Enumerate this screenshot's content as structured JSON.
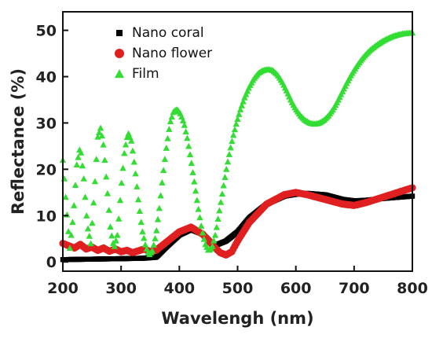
{
  "chart_data": {
    "type": "scatter",
    "xlabel": "Wavelengh (nm)",
    "ylabel": "Reflectance (%)",
    "xlim": [
      200,
      800
    ],
    "ylim": [
      -2,
      54
    ],
    "x_ticks": [
      200,
      300,
      400,
      500,
      600,
      700,
      800
    ],
    "y_ticks": [
      0,
      10,
      20,
      30,
      40,
      50
    ],
    "grid": false,
    "legend_position": "top-left",
    "series": [
      {
        "name": "Nano coral",
        "marker": "square",
        "color": "#000000",
        "points": [
          [
            200,
            0.5
          ],
          [
            250,
            0.6
          ],
          [
            300,
            0.7
          ],
          [
            340,
            0.8
          ],
          [
            360,
            1.0
          ],
          [
            380,
            3.5
          ],
          [
            400,
            5.8
          ],
          [
            420,
            7.0
          ],
          [
            440,
            6.0
          ],
          [
            460,
            3.5
          ],
          [
            480,
            4.5
          ],
          [
            500,
            6.5
          ],
          [
            520,
            9.5
          ],
          [
            550,
            12.5
          ],
          [
            580,
            14.2
          ],
          [
            600,
            14.6
          ],
          [
            620,
            14.8
          ],
          [
            650,
            14.5
          ],
          [
            680,
            13.5
          ],
          [
            700,
            13.2
          ],
          [
            720,
            13.3
          ],
          [
            750,
            13.7
          ],
          [
            780,
            14.0
          ],
          [
            800,
            14.2
          ]
        ]
      },
      {
        "name": "Nano flower",
        "marker": "circle",
        "color": "#e02020",
        "points": [
          [
            200,
            4.0
          ],
          [
            210,
            3.5
          ],
          [
            220,
            3.0
          ],
          [
            230,
            3.8
          ],
          [
            240,
            2.8
          ],
          [
            250,
            3.2
          ],
          [
            260,
            2.5
          ],
          [
            270,
            3.0
          ],
          [
            280,
            2.3
          ],
          [
            290,
            2.8
          ],
          [
            300,
            2.2
          ],
          [
            310,
            2.5
          ],
          [
            320,
            2.0
          ],
          [
            340,
            2.8
          ],
          [
            350,
            2.2
          ],
          [
            360,
            2.5
          ],
          [
            380,
            4.5
          ],
          [
            400,
            6.5
          ],
          [
            420,
            7.5
          ],
          [
            440,
            6.0
          ],
          [
            460,
            3.2
          ],
          [
            470,
            2.0
          ],
          [
            480,
            1.5
          ],
          [
            490,
            2.2
          ],
          [
            500,
            4.5
          ],
          [
            520,
            8.5
          ],
          [
            550,
            12.5
          ],
          [
            580,
            14.5
          ],
          [
            600,
            15.0
          ],
          [
            620,
            14.5
          ],
          [
            650,
            13.5
          ],
          [
            680,
            12.5
          ],
          [
            700,
            12.2
          ],
          [
            720,
            12.8
          ],
          [
            750,
            14.0
          ],
          [
            780,
            15.2
          ],
          [
            800,
            16.0
          ]
        ]
      },
      {
        "name": "Film",
        "marker": "triangle",
        "color": "#33dd33",
        "points": [
          [
            200,
            22.0
          ],
          [
            206,
            12.0
          ],
          [
            212,
            3.0
          ],
          [
            218,
            10.0
          ],
          [
            224,
            21.0
          ],
          [
            230,
            25.0
          ],
          [
            236,
            18.0
          ],
          [
            242,
            8.0
          ],
          [
            248,
            4.0
          ],
          [
            254,
            15.0
          ],
          [
            260,
            27.0
          ],
          [
            265,
            29.0
          ],
          [
            270,
            25.0
          ],
          [
            276,
            16.0
          ],
          [
            282,
            7.0
          ],
          [
            288,
            3.0
          ],
          [
            294,
            6.0
          ],
          [
            300,
            16.0
          ],
          [
            306,
            24.0
          ],
          [
            312,
            28.0
          ],
          [
            318,
            26.0
          ],
          [
            324,
            20.0
          ],
          [
            330,
            13.0
          ],
          [
            336,
            7.0
          ],
          [
            342,
            3.5
          ],
          [
            348,
            1.5
          ],
          [
            354,
            2.5
          ],
          [
            360,
            6.0
          ],
          [
            366,
            12.0
          ],
          [
            372,
            19.0
          ],
          [
            378,
            25.0
          ],
          [
            384,
            30.0
          ],
          [
            390,
            32.5
          ],
          [
            396,
            33.0
          ],
          [
            402,
            32.0
          ],
          [
            408,
            30.0
          ],
          [
            414,
            26.5
          ],
          [
            420,
            22.0
          ],
          [
            426,
            17.0
          ],
          [
            432,
            12.0
          ],
          [
            438,
            7.5
          ],
          [
            444,
            4.0
          ],
          [
            450,
            2.5
          ],
          [
            456,
            3.0
          ],
          [
            462,
            6.0
          ],
          [
            468,
            10.5
          ],
          [
            474,
            15.0
          ],
          [
            480,
            19.5
          ],
          [
            486,
            23.5
          ],
          [
            492,
            27.0
          ],
          [
            498,
            30.0
          ],
          [
            505,
            33.0
          ],
          [
            512,
            35.5
          ],
          [
            520,
            37.8
          ],
          [
            528,
            39.6
          ],
          [
            536,
            40.8
          ],
          [
            544,
            41.4
          ],
          [
            552,
            41.6
          ],
          [
            560,
            41.4
          ],
          [
            568,
            40.5
          ],
          [
            576,
            39.0
          ],
          [
            584,
            37.0
          ],
          [
            592,
            34.8
          ],
          [
            600,
            33.0
          ],
          [
            608,
            31.6
          ],
          [
            616,
            30.6
          ],
          [
            624,
            30.0
          ],
          [
            632,
            29.8
          ],
          [
            640,
            30.0
          ],
          [
            648,
            30.6
          ],
          [
            656,
            31.6
          ],
          [
            664,
            33.0
          ],
          [
            672,
            34.8
          ],
          [
            680,
            36.8
          ],
          [
            688,
            38.8
          ],
          [
            696,
            40.6
          ],
          [
            704,
            42.2
          ],
          [
            712,
            43.6
          ],
          [
            720,
            44.8
          ],
          [
            728,
            45.8
          ],
          [
            736,
            46.6
          ],
          [
            744,
            47.3
          ],
          [
            752,
            47.9
          ],
          [
            760,
            48.4
          ],
          [
            768,
            48.8
          ],
          [
            776,
            49.1
          ],
          [
            784,
            49.3
          ],
          [
            792,
            49.4
          ],
          [
            800,
            49.5
          ]
        ]
      }
    ]
  }
}
